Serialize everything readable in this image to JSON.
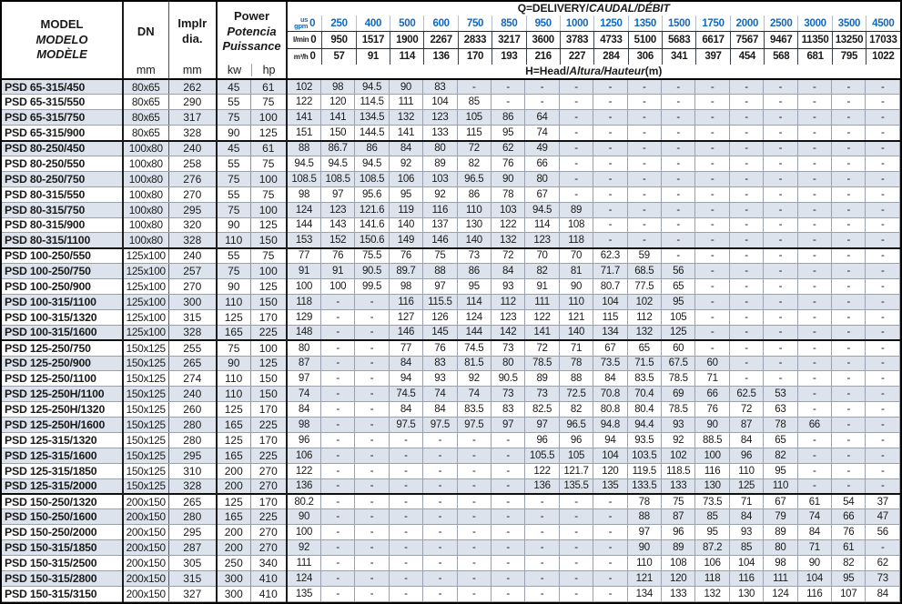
{
  "header": {
    "model_lines": {
      "en": "MODEL",
      "es": "MODELO",
      "fr": "MODÈLE"
    },
    "dn_label": "DN",
    "dn_unit": "mm",
    "impeller_lines": {
      "l1": "Implr",
      "l2": "dia."
    },
    "impeller_unit": "mm",
    "power_lines": {
      "en": "Power",
      "es": "Potencia",
      "fr": "Puissance"
    },
    "power_units": {
      "kw": "kw",
      "hp": "hp"
    },
    "delivery_title": {
      "plain": "Q=DELIVERY/",
      "italic": "CAUDAL/DÉBIT"
    },
    "head_title": {
      "plain": "H=Head/",
      "italic": "Altura/Hauteur",
      "unit": "(m)"
    },
    "flow_rows": [
      {
        "name": "us-gpm",
        "label_lines": [
          "us",
          "gpm"
        ],
        "values": [
          "0",
          "250",
          "400",
          "500",
          "600",
          "750",
          "850",
          "950",
          "1000",
          "1250",
          "1350",
          "1500",
          "1750",
          "2000",
          "2500",
          "3000",
          "3500",
          "4500"
        ]
      },
      {
        "name": "l-min",
        "label_lines": [
          "l/min"
        ],
        "values": [
          "0",
          "950",
          "1517",
          "1900",
          "2267",
          "2833",
          "3217",
          "3600",
          "3783",
          "4733",
          "5100",
          "5683",
          "6617",
          "7567",
          "9467",
          "11350",
          "13250",
          "17033"
        ]
      },
      {
        "name": "m3-h",
        "label_lines": [
          "m³/h"
        ],
        "values": [
          "0",
          "57",
          "91",
          "114",
          "136",
          "170",
          "193",
          "216",
          "227",
          "284",
          "306",
          "341",
          "397",
          "454",
          "568",
          "681",
          "795",
          "1022"
        ]
      }
    ]
  },
  "group_start_rows": [
    4,
    11,
    17,
    27
  ],
  "rows": [
    {
      "model": "PSD 65-315/450",
      "dn": "80x65",
      "dia": "262",
      "kw": "45",
      "hp": "61",
      "head": [
        "102",
        "98",
        "94.5",
        "90",
        "83",
        "-",
        "-",
        "-",
        "-",
        "-",
        "-",
        "-",
        "-",
        "-",
        "-",
        "-",
        "-",
        "-"
      ]
    },
    {
      "model": "PSD 65-315/550",
      "dn": "80x65",
      "dia": "290",
      "kw": "55",
      "hp": "75",
      "head": [
        "122",
        "120",
        "114.5",
        "111",
        "104",
        "85",
        "-",
        "-",
        "-",
        "-",
        "-",
        "-",
        "-",
        "-",
        "-",
        "-",
        "-",
        "-"
      ]
    },
    {
      "model": "PSD 65-315/750",
      "dn": "80x65",
      "dia": "317",
      "kw": "75",
      "hp": "100",
      "head": [
        "141",
        "141",
        "134.5",
        "132",
        "123",
        "105",
        "86",
        "64",
        "-",
        "-",
        "-",
        "-",
        "-",
        "-",
        "-",
        "-",
        "-",
        "-"
      ]
    },
    {
      "model": "PSD 65-315/900",
      "dn": "80x65",
      "dia": "328",
      "kw": "90",
      "hp": "125",
      "head": [
        "151",
        "150",
        "144.5",
        "141",
        "133",
        "115",
        "95",
        "74",
        "-",
        "-",
        "-",
        "-",
        "-",
        "-",
        "-",
        "-",
        "-",
        "-"
      ]
    },
    {
      "model": "PSD 80-250/450",
      "dn": "100x80",
      "dia": "240",
      "kw": "45",
      "hp": "61",
      "head": [
        "88",
        "86.7",
        "86",
        "84",
        "80",
        "72",
        "62",
        "49",
        "-",
        "-",
        "-",
        "-",
        "-",
        "-",
        "-",
        "-",
        "-",
        "-"
      ]
    },
    {
      "model": "PSD 80-250/550",
      "dn": "100x80",
      "dia": "258",
      "kw": "55",
      "hp": "75",
      "head": [
        "94.5",
        "94.5",
        "94.5",
        "92",
        "89",
        "82",
        "76",
        "66",
        "-",
        "-",
        "-",
        "-",
        "-",
        "-",
        "-",
        "-",
        "-",
        "-"
      ]
    },
    {
      "model": "PSD 80-250/750",
      "dn": "100x80",
      "dia": "276",
      "kw": "75",
      "hp": "100",
      "head": [
        "108.5",
        "108.5",
        "108.5",
        "106",
        "103",
        "96.5",
        "90",
        "80",
        "-",
        "-",
        "-",
        "-",
        "-",
        "-",
        "-",
        "-",
        "-",
        "-"
      ]
    },
    {
      "model": "PSD 80-315/550",
      "dn": "100x80",
      "dia": "270",
      "kw": "55",
      "hp": "75",
      "head": [
        "98",
        "97",
        "95.6",
        "95",
        "92",
        "86",
        "78",
        "67",
        "-",
        "-",
        "-",
        "-",
        "-",
        "-",
        "-",
        "-",
        "-",
        "-"
      ]
    },
    {
      "model": "PSD 80-315/750",
      "dn": "100x80",
      "dia": "295",
      "kw": "75",
      "hp": "100",
      "head": [
        "124",
        "123",
        "121.6",
        "119",
        "116",
        "110",
        "103",
        "94.5",
        "89",
        "-",
        "-",
        "-",
        "-",
        "-",
        "-",
        "-",
        "-",
        "-"
      ]
    },
    {
      "model": "PSD 80-315/900",
      "dn": "100x80",
      "dia": "320",
      "kw": "90",
      "hp": "125",
      "head": [
        "144",
        "143",
        "141.6",
        "140",
        "137",
        "130",
        "122",
        "114",
        "108",
        "-",
        "-",
        "-",
        "-",
        "-",
        "-",
        "-",
        "-",
        "-"
      ]
    },
    {
      "model": "PSD 80-315/1100",
      "dn": "100x80",
      "dia": "328",
      "kw": "110",
      "hp": "150",
      "head": [
        "153",
        "152",
        "150.6",
        "149",
        "146",
        "140",
        "132",
        "123",
        "118",
        "-",
        "-",
        "-",
        "-",
        "-",
        "-",
        "-",
        "-",
        "-"
      ]
    },
    {
      "model": "PSD 100-250/550",
      "dn": "125x100",
      "dia": "240",
      "kw": "55",
      "hp": "75",
      "head": [
        "77",
        "76",
        "75.5",
        "76",
        "75",
        "73",
        "72",
        "70",
        "70",
        "62.3",
        "59",
        "-",
        "-",
        "-",
        "-",
        "-",
        "-",
        "-"
      ]
    },
    {
      "model": "PSD 100-250/750",
      "dn": "125x100",
      "dia": "257",
      "kw": "75",
      "hp": "100",
      "head": [
        "91",
        "91",
        "90.5",
        "89.7",
        "88",
        "86",
        "84",
        "82",
        "81",
        "71.7",
        "68.5",
        "56",
        "-",
        "-",
        "-",
        "-",
        "-",
        "-"
      ]
    },
    {
      "model": "PSD 100-250/900",
      "dn": "125x100",
      "dia": "270",
      "kw": "90",
      "hp": "125",
      "head": [
        "100",
        "100",
        "99.5",
        "98",
        "97",
        "95",
        "93",
        "91",
        "90",
        "80.7",
        "77.5",
        "65",
        "-",
        "-",
        "-",
        "-",
        "-",
        "-"
      ]
    },
    {
      "model": "PSD 100-315/1100",
      "dn": "125x100",
      "dia": "300",
      "kw": "110",
      "hp": "150",
      "head": [
        "118",
        "-",
        "-",
        "116",
        "115.5",
        "114",
        "112",
        "111",
        "110",
        "104",
        "102",
        "95",
        "-",
        "-",
        "-",
        "-",
        "-",
        "-"
      ]
    },
    {
      "model": "PSD 100-315/1320",
      "dn": "125x100",
      "dia": "315",
      "kw": "125",
      "hp": "170",
      "head": [
        "129",
        "-",
        "-",
        "127",
        "126",
        "124",
        "123",
        "122",
        "121",
        "115",
        "112",
        "105",
        "-",
        "-",
        "-",
        "-",
        "-",
        "-"
      ]
    },
    {
      "model": "PSD 100-315/1600",
      "dn": "125x100",
      "dia": "328",
      "kw": "165",
      "hp": "225",
      "head": [
        "148",
        "-",
        "-",
        "146",
        "145",
        "144",
        "142",
        "141",
        "140",
        "134",
        "132",
        "125",
        "-",
        "-",
        "-",
        "-",
        "-",
        "-"
      ]
    },
    {
      "model": "PSD 125-250/750",
      "dn": "150x125",
      "dia": "255",
      "kw": "75",
      "hp": "100",
      "head": [
        "80",
        "-",
        "-",
        "77",
        "76",
        "74.5",
        "73",
        "72",
        "71",
        "67",
        "65",
        "60",
        "-",
        "-",
        "-",
        "-",
        "-",
        "-"
      ]
    },
    {
      "model": "PSD 125-250/900",
      "dn": "150x125",
      "dia": "265",
      "kw": "90",
      "hp": "125",
      "head": [
        "87",
        "-",
        "-",
        "84",
        "83",
        "81.5",
        "80",
        "78.5",
        "78",
        "73.5",
        "71.5",
        "67.5",
        "60",
        "-",
        "-",
        "-",
        "-",
        "-"
      ]
    },
    {
      "model": "PSD 125-250/1100",
      "dn": "150x125",
      "dia": "274",
      "kw": "110",
      "hp": "150",
      "head": [
        "97",
        "-",
        "-",
        "94",
        "93",
        "92",
        "90.5",
        "89",
        "88",
        "84",
        "83.5",
        "78.5",
        "71",
        "-",
        "-",
        "-",
        "-",
        "-"
      ]
    },
    {
      "model": "PSD 125-250H/1100",
      "dn": "150x125",
      "dia": "240",
      "kw": "110",
      "hp": "150",
      "head": [
        "74",
        "-",
        "-",
        "74.5",
        "74",
        "74",
        "73",
        "73",
        "72.5",
        "70.8",
        "70.4",
        "69",
        "66",
        "62.5",
        "53",
        "-",
        "-",
        "-"
      ]
    },
    {
      "model": "PSD 125-250H/1320",
      "dn": "150x125",
      "dia": "260",
      "kw": "125",
      "hp": "170",
      "head": [
        "84",
        "-",
        "-",
        "84",
        "84",
        "83.5",
        "83",
        "82.5",
        "82",
        "80.8",
        "80.4",
        "78.5",
        "76",
        "72",
        "63",
        "-",
        "-",
        "-"
      ]
    },
    {
      "model": "PSD 125-250H/1600",
      "dn": "150x125",
      "dia": "280",
      "kw": "165",
      "hp": "225",
      "head": [
        "98",
        "-",
        "-",
        "97.5",
        "97.5",
        "97.5",
        "97",
        "97",
        "96.5",
        "94.8",
        "94.4",
        "93",
        "90",
        "87",
        "78",
        "66",
        "-",
        "-"
      ]
    },
    {
      "model": "PSD 125-315/1320",
      "dn": "150x125",
      "dia": "280",
      "kw": "125",
      "hp": "170",
      "head": [
        "96",
        "-",
        "-",
        "-",
        "-",
        "-",
        "-",
        "96",
        "96",
        "94",
        "93.5",
        "92",
        "88.5",
        "84",
        "65",
        "-",
        "-",
        "-"
      ]
    },
    {
      "model": "PSD 125-315/1600",
      "dn": "150x125",
      "dia": "295",
      "kw": "165",
      "hp": "225",
      "head": [
        "106",
        "-",
        "-",
        "-",
        "-",
        "-",
        "-",
        "105.5",
        "105",
        "104",
        "103.5",
        "102",
        "100",
        "96",
        "82",
        "-",
        "-",
        "-"
      ]
    },
    {
      "model": "PSD 125-315/1850",
      "dn": "150x125",
      "dia": "310",
      "kw": "200",
      "hp": "270",
      "head": [
        "122",
        "-",
        "-",
        "-",
        "-",
        "-",
        "-",
        "122",
        "121.7",
        "120",
        "119.5",
        "118.5",
        "116",
        "110",
        "95",
        "-",
        "-",
        "-"
      ]
    },
    {
      "model": "PSD 125-315/2000",
      "dn": "150x125",
      "dia": "328",
      "kw": "200",
      "hp": "270",
      "head": [
        "136",
        "-",
        "-",
        "-",
        "-",
        "-",
        "-",
        "136",
        "135.5",
        "135",
        "133.5",
        "133",
        "130",
        "125",
        "110",
        "-",
        "-",
        "-"
      ]
    },
    {
      "model": "PSD 150-250/1320",
      "dn": "200x150",
      "dia": "265",
      "kw": "125",
      "hp": "170",
      "head": [
        "80.2",
        "-",
        "-",
        "-",
        "-",
        "-",
        "-",
        "-",
        "-",
        "-",
        "78",
        "75",
        "73.5",
        "71",
        "67",
        "61",
        "54",
        "37"
      ]
    },
    {
      "model": "PSD 150-250/1600",
      "dn": "200x150",
      "dia": "280",
      "kw": "165",
      "hp": "225",
      "head": [
        "90",
        "-",
        "-",
        "-",
        "-",
        "-",
        "-",
        "-",
        "-",
        "-",
        "88",
        "87",
        "85",
        "84",
        "79",
        "74",
        "66",
        "47"
      ]
    },
    {
      "model": "PSD 150-250/2000",
      "dn": "200x150",
      "dia": "295",
      "kw": "200",
      "hp": "270",
      "head": [
        "100",
        "-",
        "-",
        "-",
        "-",
        "-",
        "-",
        "-",
        "-",
        "-",
        "97",
        "96",
        "95",
        "93",
        "89",
        "84",
        "76",
        "56"
      ]
    },
    {
      "model": "PSD 150-315/1850",
      "dn": "200x150",
      "dia": "287",
      "kw": "200",
      "hp": "270",
      "head": [
        "92",
        "-",
        "-",
        "-",
        "-",
        "-",
        "-",
        "-",
        "-",
        "-",
        "90",
        "89",
        "87.2",
        "85",
        "80",
        "71",
        "61",
        "-"
      ]
    },
    {
      "model": "PSD 150-315/2500",
      "dn": "200x150",
      "dia": "305",
      "kw": "250",
      "hp": "340",
      "head": [
        "111",
        "-",
        "-",
        "-",
        "-",
        "-",
        "-",
        "-",
        "-",
        "-",
        "110",
        "108",
        "106",
        "104",
        "98",
        "90",
        "82",
        "62"
      ]
    },
    {
      "model": "PSD 150-315/2800",
      "dn": "200x150",
      "dia": "315",
      "kw": "300",
      "hp": "410",
      "head": [
        "124",
        "-",
        "-",
        "-",
        "-",
        "-",
        "-",
        "-",
        "-",
        "-",
        "121",
        "120",
        "118",
        "116",
        "111",
        "104",
        "95",
        "73"
      ]
    },
    {
      "model": "PSD 150-315/3150",
      "dn": "200x150",
      "dia": "327",
      "kw": "300",
      "hp": "410",
      "head": [
        "135",
        "-",
        "-",
        "-",
        "-",
        "-",
        "-",
        "-",
        "-",
        "-",
        "134",
        "133",
        "132",
        "130",
        "124",
        "116",
        "107",
        "84"
      ]
    }
  ],
  "colors": {
    "accent_blue": "#1068bf",
    "row_shade": "#dde3ed",
    "grid_dark": "#1c1c1c",
    "grid_light": "#9aa1ad"
  }
}
